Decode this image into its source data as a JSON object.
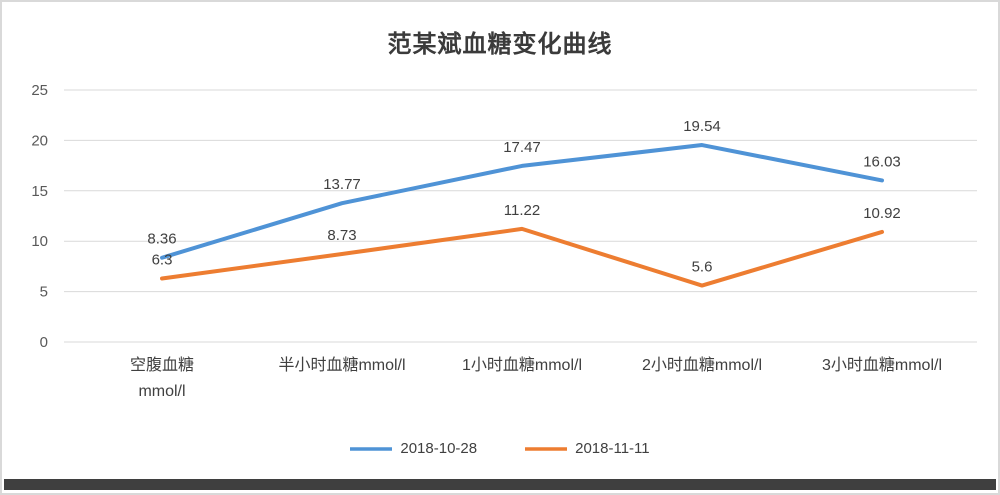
{
  "chart_data": {
    "type": "line",
    "title": "范某斌血糖变化曲线",
    "categories": [
      "空腹血糖\nmmol/l",
      "半小时血糖mmol/l",
      "1小时血糖mmol/l",
      "2小时血糖mmol/l",
      "3小时血糖mmol/l"
    ],
    "series": [
      {
        "name": "2018-10-28",
        "color": "#4f93d6",
        "values": [
          8.36,
          13.77,
          17.47,
          19.54,
          16.03
        ]
      },
      {
        "name": "2018-11-11",
        "color": "#ed7d31",
        "values": [
          6.3,
          8.73,
          11.22,
          5.6,
          10.92
        ]
      }
    ],
    "xlabel": "",
    "ylabel": "",
    "ylim": [
      0,
      25
    ],
    "ytick_step": 5,
    "grid": true,
    "legend_position": "bottom",
    "colors": {
      "gridline": "#d9d9d9",
      "tick_text": "#595959",
      "label_text": "#404040"
    }
  }
}
